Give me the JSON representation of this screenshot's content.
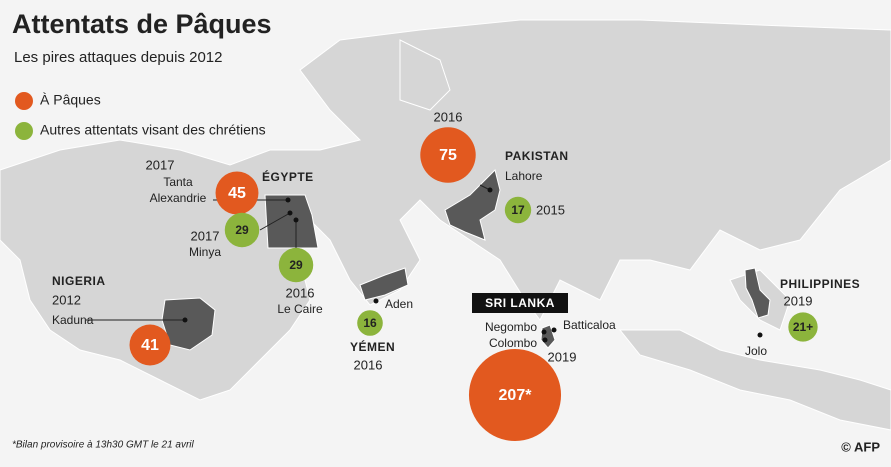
{
  "header": {
    "title": "Attentats de Pâques",
    "subtitle": "Les pires attaques depuis 2012"
  },
  "legend": [
    {
      "label": "À Pâques",
      "color": "#e2591f"
    },
    {
      "label": "Autres attentats visant des chrétiens",
      "color": "#8cb43c"
    }
  ],
  "markers": [
    {
      "value": 75,
      "color": "#e2591f"
    },
    {
      "value": 45,
      "color": "#e2591f"
    },
    {
      "value": 29,
      "color": "#8cb43c"
    },
    {
      "value": 29,
      "color": "#8cb43c"
    },
    {
      "value": 41,
      "color": "#e2591f"
    },
    {
      "value": 16,
      "color": "#8cb43c"
    },
    {
      "value": 17,
      "color": "#8cb43c"
    },
    {
      "value": 207,
      "label": "207*",
      "color": "#e2591f"
    },
    {
      "value": 21,
      "label": "21+",
      "color": "#8cb43c"
    }
  ],
  "countries": [
    "PAKISTAN",
    "ÉGYPTE",
    "NIGERIA",
    "YÉMEN",
    "SRI LANKA",
    "PHILIPPINES"
  ],
  "cities": [
    "Lahore",
    "Tanta",
    "Alexandrie",
    "Minya",
    "Le Caire",
    "Kaduna",
    "Aden",
    "Negombo",
    "Colombo",
    "Batticaloa",
    "Jolo"
  ],
  "years": [
    "2016",
    "2015",
    "2017",
    "2017",
    "2016",
    "2012",
    "2016",
    "2019",
    "2019"
  ],
  "footnote": "*Bilan provisoire à 13h30 GMT le 21 avril",
  "credit": "© AFP"
}
